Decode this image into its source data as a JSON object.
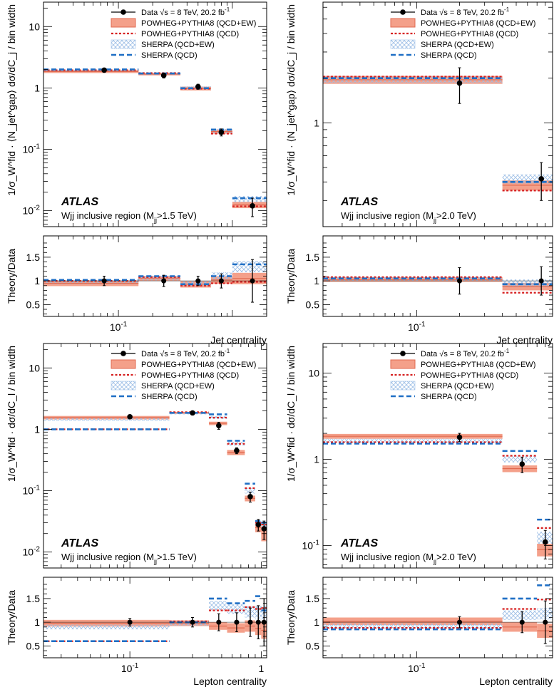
{
  "colors": {
    "data": "#000000",
    "powheg_ew": "#f4a08a",
    "powheg_qcd": "#d62020",
    "sherpa_ew": "#9fc0e6",
    "sherpa_qcd": "#1f6fc5"
  },
  "legend": {
    "data": "Data",
    "data_energy": "√s = 8 TeV, 20.2 fb",
    "data_lumi_exp": "-1",
    "powheg_ew": "POWHEG+PYTHIA8 (QCD+EW)",
    "powheg_qcd": "POWHEG+PYTHIA8 (QCD)",
    "sherpa_ew": "SHERPA (QCD+EW)",
    "sherpa_qcd": "SHERPA (QCD)"
  },
  "labels": {
    "atlas": "ATLAS",
    "ratio_ylabel": "Theory/Data",
    "ylabel_jet": "1/σW·⟨Njet gap⟩ dσ/dCj / bin width",
    "ylabel_lep": "1/σW fid. dσ/dCl / bin width"
  },
  "chart_data": [
    {
      "type": "step",
      "id": "jet-1p5",
      "xlabel": "Jet centrality",
      "ylabel_display": "1/σ_W^fid · ⟨N_jet^gap⟩ dσ/dC_j / bin width",
      "region_text": "Wjj inclusive region (Mjj >1.5 TeV)",
      "region_main": "Wjj inclusive region (M",
      "region_sub": "jj",
      "region_tail": ">1.5 TeV)",
      "xlim": [
        0.022,
        2.0
      ],
      "ylim": [
        0.0055,
        25
      ],
      "rlim": [
        0.25,
        1.95
      ],
      "xticks": [
        {
          "v": 0.1,
          "b": "10",
          "e": "-1"
        }
      ],
      "yticks": [
        {
          "v": 0.01,
          "b": "10",
          "e": "-2"
        },
        {
          "v": 0.1,
          "b": "10",
          "e": "-1"
        },
        {
          "v": 1,
          "b": "1",
          "e": ""
        },
        {
          "v": 10,
          "b": "10",
          "e": ""
        }
      ],
      "rticks": [
        0.5,
        1,
        1.5
      ],
      "edges": [
        0.022,
        0.15,
        0.35,
        0.65,
        1.0,
        2.0
      ],
      "data": {
        "x": [
          0.075,
          0.25,
          0.5,
          0.8,
          1.5
        ],
        "y": [
          1.95,
          1.6,
          1.05,
          0.19,
          0.012
        ],
        "stat": [
          0.1,
          0.1,
          0.06,
          0.015,
          0.0025
        ],
        "tot": [
          0.15,
          0.15,
          0.1,
          0.025,
          0.004
        ]
      },
      "powheg_ew": {
        "values": [
          1.85,
          1.68,
          0.98,
          0.195,
          0.0125
        ],
        "unc": [
          0.1,
          0.08,
          0.07,
          0.015,
          0.0015
        ]
      },
      "powheg_qcd": {
        "values": [
          1.95,
          1.75,
          0.97,
          0.18,
          0.0118
        ]
      },
      "sherpa_ew": {
        "values": [
          1.9,
          1.7,
          1.0,
          0.2,
          0.0155
        ],
        "unc": [
          0.08,
          0.07,
          0.06,
          0.015,
          0.0018
        ]
      },
      "sherpa_qcd": {
        "values": [
          2.0,
          1.72,
          0.99,
          0.21,
          0.016
        ]
      },
      "ratio": {
        "data_stat": [
          0.06,
          0.06,
          0.06,
          0.08,
          0.25
        ],
        "data_tot": [
          0.1,
          0.12,
          0.1,
          0.15,
          0.45
        ],
        "powheg_ew": {
          "values": [
            0.95,
            1.05,
            0.93,
            1.02,
            1.05
          ],
          "unc": [
            0.06,
            0.05,
            0.07,
            0.08,
            0.12
          ]
        },
        "powheg_qcd": [
          1.0,
          1.08,
          0.9,
          0.95,
          0.98
        ],
        "sherpa_ew": {
          "values": [
            0.97,
            1.06,
            0.95,
            1.1,
            1.3
          ],
          "unc": [
            0.04,
            0.05,
            0.05,
            0.08,
            0.12
          ]
        },
        "sherpa_qcd": [
          1.02,
          1.1,
          0.93,
          1.1,
          1.35
        ]
      }
    },
    {
      "type": "step",
      "id": "jet-2p0",
      "xlabel": "Jet centrality",
      "ylabel_display": "1/σ_W^fid · ⟨N_jet^gap⟩ dσ/dC_j / bin width",
      "region_text": "Wjj inclusive region (Mjj >2.0 TeV)",
      "region_main": "Wjj inclusive region (M",
      "region_sub": "jj",
      "region_tail": ">2.0 TeV)",
      "xlim": [
        0.022,
        0.9
      ],
      "ylim": [
        0.2,
        6.5
      ],
      "rlim": [
        0.25,
        1.95
      ],
      "xticks": [
        {
          "v": 0.1,
          "b": "10",
          "e": "-1"
        }
      ],
      "yticks": [
        {
          "v": 1,
          "b": "1",
          "e": ""
        }
      ],
      "rticks": [
        0.5,
        1,
        1.5
      ],
      "edges": [
        0.022,
        0.4,
        0.9
      ],
      "data": {
        "x": [
          0.2,
          0.75
        ],
        "y": [
          1.85,
          0.42
        ],
        "stat": [
          0.25,
          0.06
        ],
        "tot": [
          0.5,
          0.12
        ]
      },
      "powheg_ew": {
        "values": [
          1.95,
          0.38
        ],
        "unc": [
          0.12,
          0.03
        ]
      },
      "powheg_qcd": {
        "values": [
          2.05,
          0.35
        ]
      },
      "sherpa_ew": {
        "values": [
          1.95,
          0.42
        ],
        "unc": [
          0.1,
          0.03
        ]
      },
      "sherpa_qcd": {
        "values": [
          2.0,
          0.4
        ]
      },
      "ratio": {
        "data_stat": [
          0.15,
          0.15
        ],
        "data_tot": [
          0.28,
          0.3
        ],
        "powheg_ew": {
          "values": [
            1.03,
            0.88
          ],
          "unc": [
            0.05,
            0.08
          ]
        },
        "powheg_qcd": [
          1.08,
          0.75
        ],
        "sherpa_ew": {
          "values": [
            1.04,
            0.95
          ],
          "unc": [
            0.04,
            0.08
          ]
        },
        "sherpa_qcd": [
          1.05,
          0.93
        ]
      }
    },
    {
      "type": "step",
      "id": "lep-1p5",
      "xlabel": "Lepton centrality",
      "ylabel_display": "1/σ_W^fid · dσ/dC_l / bin width",
      "region_text": "Wjj inclusive region (Mjj >1.5 TeV)",
      "region_main": "Wjj inclusive region (M",
      "region_sub": "jj",
      "region_tail": ">1.5 TeV)",
      "xlim": [
        0.022,
        1.1
      ],
      "ylim": [
        0.0055,
        25
      ],
      "rlim": [
        0.25,
        1.95
      ],
      "xticks": [
        {
          "v": 0.1,
          "b": "10",
          "e": "-1"
        },
        {
          "v": 1,
          "b": "1",
          "e": ""
        }
      ],
      "yticks": [
        {
          "v": 0.01,
          "b": "10",
          "e": "-2"
        },
        {
          "v": 0.1,
          "b": "10",
          "e": "-1"
        },
        {
          "v": 1,
          "b": "1",
          "e": ""
        },
        {
          "v": 10,
          "b": "10",
          "e": ""
        }
      ],
      "rticks": [
        0.5,
        1,
        1.5
      ],
      "edges": [
        0.022,
        0.2,
        0.4,
        0.55,
        0.75,
        0.9,
        1.0,
        1.1
      ],
      "data": {
        "x": [
          0.1,
          0.3,
          0.475,
          0.65,
          0.825,
          0.95,
          1.05
        ],
        "y": [
          1.6,
          1.85,
          1.15,
          0.45,
          0.08,
          0.028,
          0.024
        ],
        "stat": [
          0.06,
          0.07,
          0.08,
          0.03,
          0.008,
          0.003,
          0.004
        ],
        "tot": [
          0.1,
          0.1,
          0.15,
          0.05,
          0.015,
          0.006,
          0.008
        ]
      },
      "powheg_ew": {
        "values": [
          1.55,
          1.85,
          1.25,
          0.42,
          0.075,
          0.025,
          0.02
        ],
        "unc": [
          0.1,
          0.06,
          0.08,
          0.04,
          0.008,
          0.004,
          0.005
        ]
      },
      "powheg_qcd": {
        "values": [
          1.0,
          1.9,
          1.55,
          0.58,
          0.11,
          0.03,
          0.028
        ]
      },
      "sherpa_ew": {
        "values": [
          1.45,
          1.8,
          1.55,
          0.58,
          0.1,
          0.03,
          0.027
        ],
        "unc": [
          0.08,
          0.05,
          0.08,
          0.04,
          0.01,
          0.003,
          0.003
        ]
      },
      "sherpa_qcd": {
        "values": [
          1.0,
          1.85,
          1.75,
          0.65,
          0.13,
          0.032,
          0.03
        ]
      },
      "ratio": {
        "data_stat": [
          0.05,
          0.06,
          0.1,
          0.1,
          0.15,
          0.15,
          0.3
        ],
        "data_tot": [
          0.08,
          0.1,
          0.18,
          0.2,
          0.3,
          0.35,
          0.5
        ],
        "powheg_ew": {
          "values": [
            0.98,
            0.98,
            0.92,
            0.88,
            0.92,
            0.87,
            0.83
          ],
          "unc": [
            0.07,
            0.06,
            0.08,
            0.1,
            0.12,
            0.14,
            0.18
          ]
        },
        "powheg_qcd": [
          0.6,
          1.02,
          1.25,
          1.25,
          1.32,
          1.28,
          1.3
        ],
        "sherpa_ew": {
          "values": [
            0.9,
            0.97,
            1.35,
            1.28,
            1.22,
            1.2,
            1.2
          ],
          "unc": [
            0.05,
            0.04,
            0.1,
            0.1,
            0.12,
            0.14,
            0.14
          ]
        },
        "sherpa_qcd": [
          0.6,
          1.0,
          1.5,
          1.4,
          1.45,
          1.55,
          1.25
        ]
      }
    },
    {
      "type": "step",
      "id": "lep-2p0",
      "xlabel": "Lepton centrality",
      "ylabel_display": "1/σ_W^fid · dσ/dC_l / bin width",
      "region_text": "Wjj inclusive region (Mjj >2.0 TeV)",
      "region_main": "Wjj inclusive region (M",
      "region_sub": "jj",
      "region_tail": ">2.0 TeV)",
      "xlim": [
        0.022,
        0.9
      ],
      "ylim": [
        0.055,
        22
      ],
      "rlim": [
        0.25,
        1.95
      ],
      "xticks": [
        {
          "v": 0.1,
          "b": "10",
          "e": "-1"
        }
      ],
      "yticks": [
        {
          "v": 0.1,
          "b": "10",
          "e": "-1"
        },
        {
          "v": 1,
          "b": "1",
          "e": ""
        },
        {
          "v": 10,
          "b": "10",
          "e": ""
        }
      ],
      "rticks": [
        0.5,
        1,
        1.5
      ],
      "edges": [
        0.022,
        0.4,
        0.7,
        0.9
      ],
      "data": {
        "x": [
          0.2,
          0.55,
          0.8
        ],
        "y": [
          1.8,
          0.88,
          0.11
        ],
        "stat": [
          0.1,
          0.1,
          0.02
        ],
        "tot": [
          0.2,
          0.18,
          0.04
        ]
      },
      "powheg_ew": {
        "values": [
          1.85,
          0.78,
          0.09
        ],
        "unc": [
          0.12,
          0.07,
          0.015
        ]
      },
      "powheg_qcd": {
        "values": [
          1.58,
          1.1,
          0.16
        ]
      },
      "sherpa_ew": {
        "values": [
          1.65,
          1.0,
          0.125
        ],
        "unc": [
          0.08,
          0.08,
          0.02
        ]
      },
      "sherpa_qcd": {
        "values": [
          1.52,
          1.25,
          0.2
        ]
      },
      "ratio": {
        "data_stat": [
          0.08,
          0.12,
          0.25
        ],
        "data_tot": [
          0.12,
          0.22,
          0.45
        ],
        "powheg_ew": {
          "values": [
            1.02,
            0.9,
            0.82
          ],
          "unc": [
            0.08,
            0.1,
            0.15
          ]
        },
        "powheg_qcd": [
          0.88,
          1.28,
          1.48
        ],
        "sherpa_ew": {
          "values": [
            0.92,
            1.15,
            1.18
          ],
          "unc": [
            0.05,
            0.1,
            0.12
          ]
        },
        "sherpa_qcd": [
          0.85,
          1.5,
          1.78
        ]
      }
    }
  ]
}
